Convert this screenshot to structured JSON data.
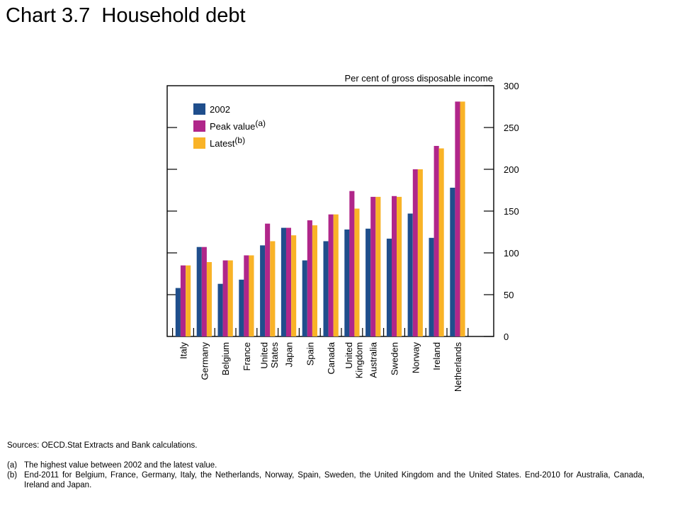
{
  "title": "Chart 3.7  Household debt",
  "chart_data": {
    "type": "bar",
    "unit_label": "Per cent of gross disposable income",
    "categories": [
      [
        "Italy"
      ],
      [
        "Germany"
      ],
      [
        "Belgium"
      ],
      [
        "France"
      ],
      [
        "United",
        "States"
      ],
      [
        "Japan"
      ],
      [
        "Spain"
      ],
      [
        "Canada"
      ],
      [
        "United",
        "Kingdom"
      ],
      [
        "Australia"
      ],
      [
        "Sweden"
      ],
      [
        "Norway"
      ],
      [
        "Ireland"
      ],
      [
        "Netherlands"
      ]
    ],
    "series": [
      {
        "name": "2002",
        "color": "#1f4e8c",
        "values": [
          58,
          107,
          63,
          68,
          109,
          130,
          91,
          114,
          128,
          129,
          117,
          147,
          118,
          178
        ]
      },
      {
        "name": "Peak value",
        "superscript": "(a)",
        "color": "#b0268a",
        "values": [
          85,
          107,
          91,
          97,
          135,
          130,
          139,
          146,
          174,
          167,
          168,
          200,
          228,
          281
        ]
      },
      {
        "name": "Latest",
        "superscript": "(b)",
        "color": "#f9b327",
        "values": [
          85,
          89,
          91,
          97,
          114,
          121,
          133,
          146,
          153,
          167,
          167,
          200,
          225,
          281
        ]
      }
    ],
    "ylim": [
      0,
      300
    ],
    "yticks": [
      "0",
      "50",
      "100",
      "150",
      "200",
      "250",
      "300"
    ],
    "legend_position": "top-left"
  },
  "notes": {
    "sources": "Sources:  OECD.Stat Extracts and Bank calculations.",
    "footnotes": [
      {
        "key": "(a)",
        "text": "The highest value between 2002 and the latest value."
      },
      {
        "key": "(b)",
        "text": "End-2011 for Belgium, France, Germany, Italy, the Netherlands, Norway, Spain, Sweden, the United Kingdom and the United States.  End-2010 for Australia, Canada, Ireland and Japan."
      }
    ]
  }
}
